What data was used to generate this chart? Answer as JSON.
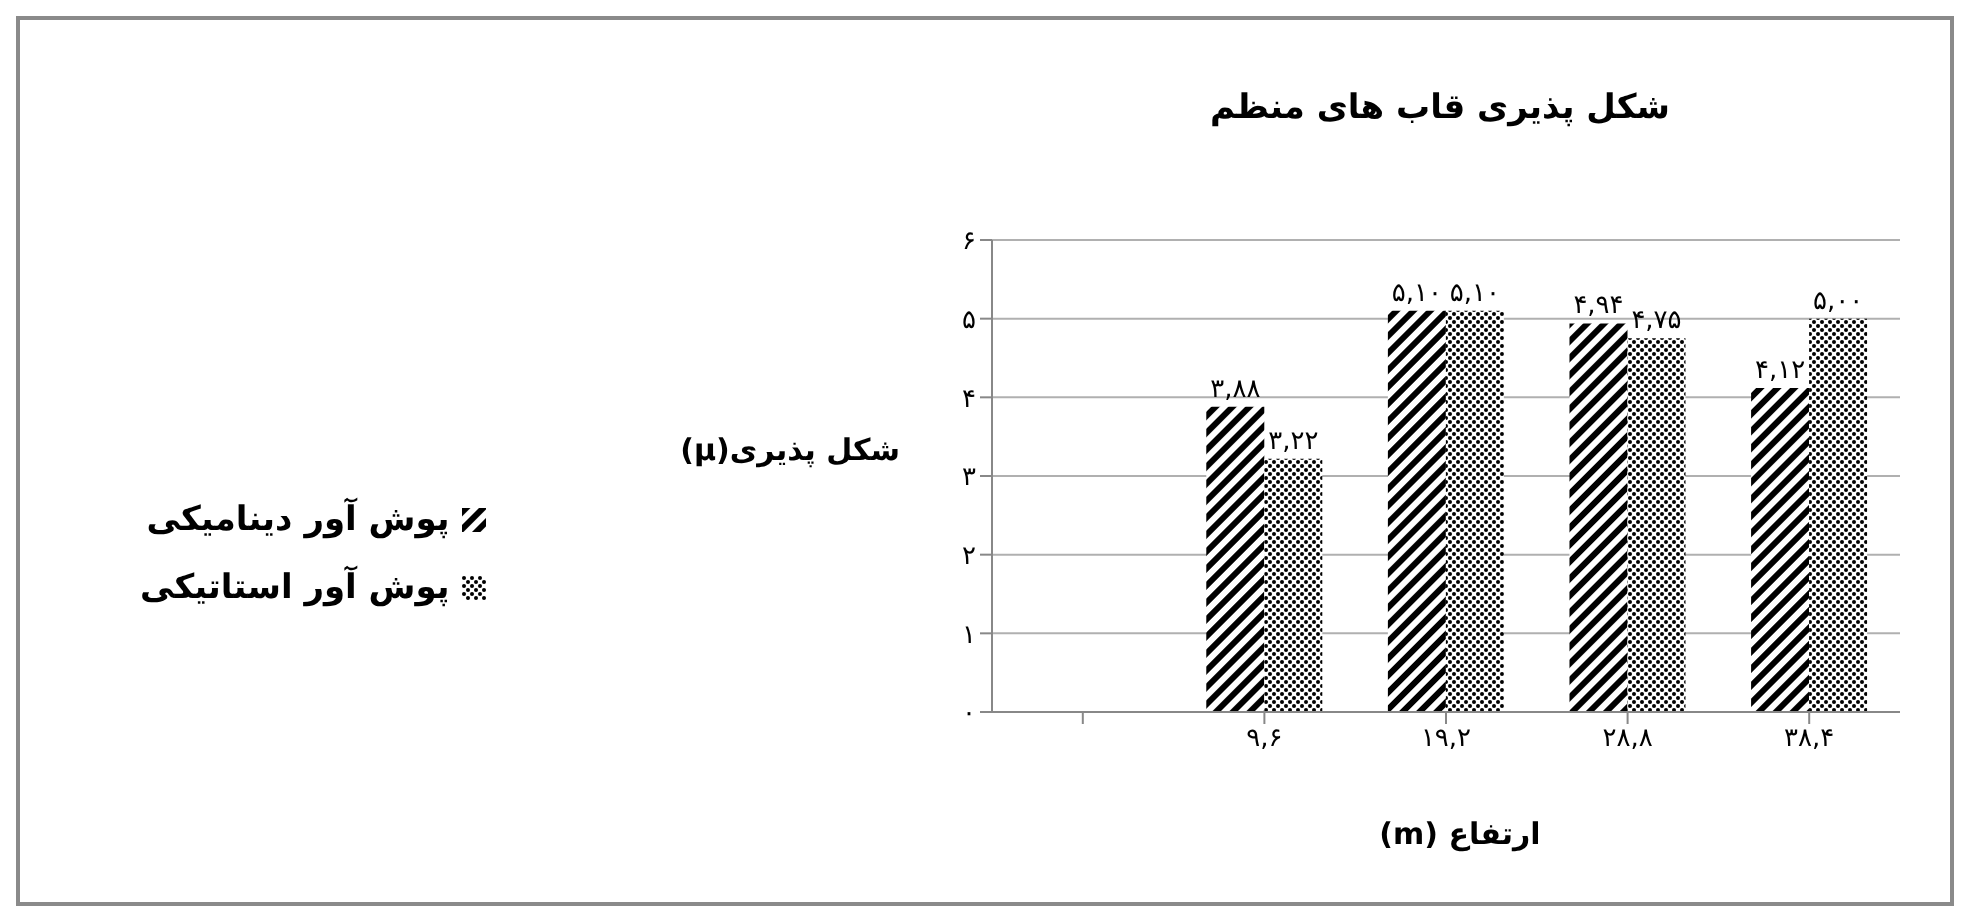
{
  "chart_data": {
    "type": "bar",
    "title": "شکل پذیری قاب های منظم",
    "xlabel": "ارتفاع (m)",
    "ylabel": "شکل پذیری(μ)",
    "categories": [
      null,
      "۹,۶",
      "۱۹,۲",
      "۲۸,۸",
      "۳۸,۴"
    ],
    "series": [
      {
        "name": "پوش آور دینامیکی",
        "color": "#000000",
        "values": [
          null,
          3.88,
          5.1,
          4.94,
          4.12
        ],
        "value_labels": [
          null,
          "۳,۸۸",
          "۵,۱۰",
          "۴,۹۴",
          "۴,۱۲"
        ]
      },
      {
        "name": "پوش آور استاتیکی",
        "color": "#000000",
        "values": [
          null,
          3.22,
          5.1,
          4.75,
          5.0
        ],
        "value_labels": [
          null,
          "۳,۲۲",
          "۵,۱۰",
          "۴,۷۵",
          "۵,۰۰"
        ]
      }
    ],
    "ylim": [
      0,
      6
    ],
    "yticks": [
      {
        "value": 0,
        "label": "۰"
      },
      {
        "value": 1,
        "label": "۱"
      },
      {
        "value": 2,
        "label": "۲"
      },
      {
        "value": 3,
        "label": "۳"
      },
      {
        "value": 4,
        "label": "۴"
      },
      {
        "value": 5,
        "label": "۵"
      },
      {
        "value": 6,
        "label": "۶"
      }
    ],
    "grid": "y",
    "legend": "left"
  }
}
